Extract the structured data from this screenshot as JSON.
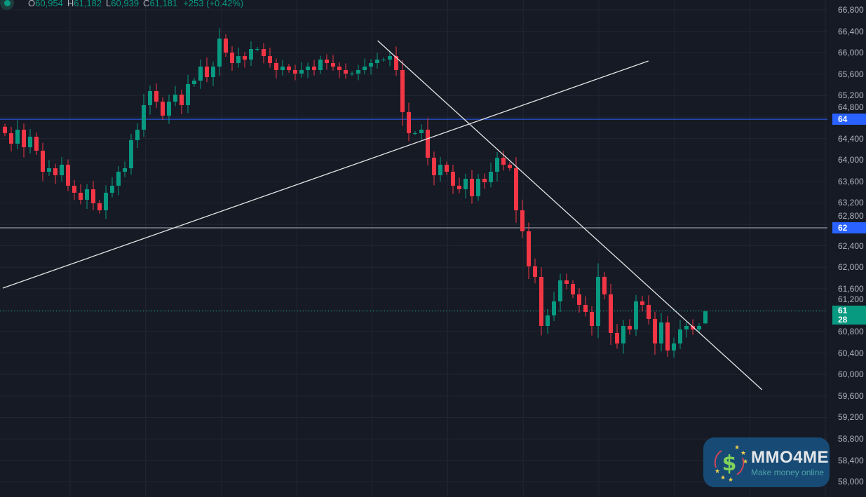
{
  "legend": {
    "open_label": "O",
    "open": "60,954",
    "high_label": "H",
    "high": "61,182",
    "low_label": "L",
    "low": "60,939",
    "close_label": "C",
    "close": "61,181",
    "change": "+253 (+0.42%)"
  },
  "colors": {
    "background": "#161a25",
    "grid": "#222632",
    "up": "#089981",
    "down": "#f23645",
    "line_blue": "#2962ff",
    "drawing": "#e6e6e6"
  },
  "price_axis": {
    "ticks": [
      "66,800",
      "66,400",
      "66,000",
      "65,600",
      "65,200",
      "64,800",
      "64,400",
      "64,000",
      "63,600",
      "63,200",
      "62,800",
      "62,400",
      "62,000",
      "61,600",
      "61,200",
      "60,800",
      "60,400",
      "60,000",
      "59,600",
      "59,200",
      "58,800",
      "58,400",
      "58,000"
    ],
    "horizontal_line_1_label": "64",
    "horizontal_line_2_label": "62",
    "last_price_label": "61",
    "countdown_label": "28"
  },
  "chart_data": {
    "type": "candlestick",
    "closes": [
      64500,
      64304,
      64565,
      64238,
      64434,
      64173,
      63781,
      63846,
      63716,
      63912,
      63520,
      63389,
      63258,
      63454,
      63193,
      63062,
      63389,
      63520,
      63781,
      63846,
      64369,
      64565,
      65023,
      65284,
      65088,
      64827,
      65088,
      65219,
      65023,
      65415,
      65480,
      65742,
      65545,
      65742,
      66264,
      66003,
      65807,
      65937,
      65872,
      66068,
      66068,
      65937,
      65807,
      65676,
      65742,
      65676,
      65611,
      65676,
      65742,
      65676,
      65872,
      65807,
      65742,
      65676,
      65611,
      65611,
      65676,
      65742,
      65807,
      65872,
      65872,
      65937,
      65676,
      64892,
      64500,
      64500,
      64565,
      64042,
      63716,
      63912,
      63781,
      63520,
      63454,
      63650,
      63324,
      63650,
      63585,
      63781,
      64042,
      63912,
      63846,
      63062,
      62670,
      62017,
      61821,
      60906,
      61102,
      61364,
      61755,
      61690,
      61494,
      61298,
      61167,
      60906,
      61821,
      61494,
      60775,
      60579,
      60906,
      60840,
      61364,
      61298,
      61037,
      60579,
      60971,
      60448,
      60579,
      60840,
      60906,
      60840,
      60906,
      61102
    ],
    "last_candle": {
      "open": 60954,
      "high": 61182,
      "low": 60939,
      "close": 61181
    },
    "horizontal_lines": [
      64760,
      62735
    ],
    "trend_lines": [
      {
        "from": {
          "bar": 0,
          "price": 61611
        },
        "to": {
          "bar": 102.3,
          "price": 65846
        }
      },
      {
        "from": {
          "bar": 59.4,
          "price": 66225
        },
        "to": {
          "bar": 120.3,
          "price": 59716
        }
      }
    ],
    "ylim": [
      57900,
      67000
    ]
  },
  "watermark": {
    "title": "MMO4ME",
    "tagline": "Make money online"
  }
}
